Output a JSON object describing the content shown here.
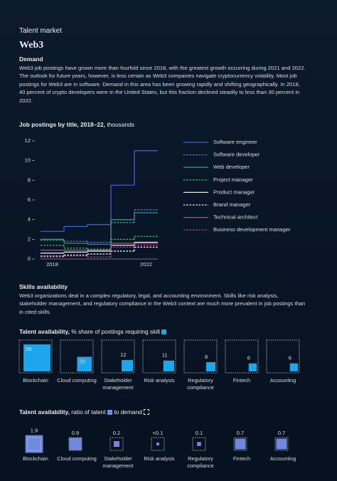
{
  "header": {
    "kicker": "Talent market",
    "title": "Web3"
  },
  "sections": [
    {
      "heading": "Demand",
      "text": "Web3 job postings have grown more than fourfold since 2018, with the greatest growth occurring during 2021 and 2022. The outlook for future years, however, is less certain as Web3 companies navigate cryptocurrency volatility. Most job postings for Web3 are in software. Demand in this area has been growing rapidly and shifting geographically. In 2018, 40 percent of crypto developers were in the United States, but this fraction declined steadily to less than 30 percent in 2022."
    },
    {
      "heading": "Skills availability",
      "text": "Web3 organizations deal in a complex regulatory, legal, and accounting environment. Skills like risk analysis, stakeholder management, and regulatory compliance in the Web3 context are much more prevalent in job postings than in cited skills."
    }
  ],
  "chart_data": [
    {
      "type": "step",
      "title": "Job postings by title, 2018–22,",
      "subtitle": "thousands",
      "categories": [
        "2018",
        null,
        null,
        null,
        "2022"
      ],
      "ylim": [
        0,
        12
      ],
      "yticks": [
        0,
        2,
        4,
        6,
        8,
        10,
        12
      ],
      "series": [
        {
          "name": "Software engineer",
          "color": "#3d5fe0",
          "dash": false,
          "values": [
            2.8,
            3.3,
            3.5,
            7.5,
            11.0
          ]
        },
        {
          "name": "Software developer",
          "color": "#5a7bf0",
          "dash": true,
          "values": [
            1.9,
            1.8,
            1.7,
            3.7,
            5.0
          ]
        },
        {
          "name": "Web developer",
          "color": "#2f9a6c",
          "dash": false,
          "values": [
            2.0,
            1.6,
            1.5,
            4.0,
            4.7
          ]
        },
        {
          "name": "Project manager",
          "color": "#3fb07e",
          "dash": true,
          "values": [
            1.4,
            1.1,
            1.0,
            2.0,
            2.3
          ]
        },
        {
          "name": "Product manager",
          "color": "#e6e6e6",
          "dash": false,
          "values": [
            0.6,
            0.7,
            0.8,
            1.4,
            1.7
          ]
        },
        {
          "name": "Brand manager",
          "color": "#f2f2f2",
          "dash": true,
          "values": [
            0.3,
            0.4,
            0.5,
            0.8,
            1.2
          ]
        },
        {
          "name": "Technical architect",
          "color": "#c2409f",
          "dash": false,
          "values": [
            0.9,
            0.9,
            0.9,
            1.6,
            1.6
          ]
        },
        {
          "name": "Business development manager",
          "color": "#b0408f",
          "dash": true,
          "values": [
            0.2,
            0.3,
            0.2,
            1.2,
            1.4
          ]
        }
      ]
    },
    {
      "type": "square",
      "title": "Talent availability,",
      "subtitle": "% share of postings requiring skill",
      "color": "#1ea6ec",
      "categories": [
        "Blockchain",
        "Cloud computing",
        "Stakeholder management",
        "Risk analysis",
        "Regulatory compliance",
        "Fintech",
        "Accounting"
      ],
      "values": [
        68,
        20,
        12,
        11,
        8,
        6,
        6
      ]
    },
    {
      "type": "ratio",
      "title": "Talent availability,",
      "subtitle": "ratio of talent",
      "subtitle2": "to demand",
      "color": "#7088e0",
      "categories": [
        "Blockchain",
        "Cloud computing",
        "Stakeholder management",
        "Risk analysis",
        "Regulatory compliance",
        "Fintech",
        "Accounting"
      ],
      "values": [
        1.9,
        0.9,
        0.2,
        0.05,
        0.1,
        0.7,
        0.7
      ],
      "value_labels": [
        "1.9",
        "0.9",
        "0.2",
        "<0.1",
        "0.1",
        "0.7",
        "0.7"
      ]
    }
  ]
}
